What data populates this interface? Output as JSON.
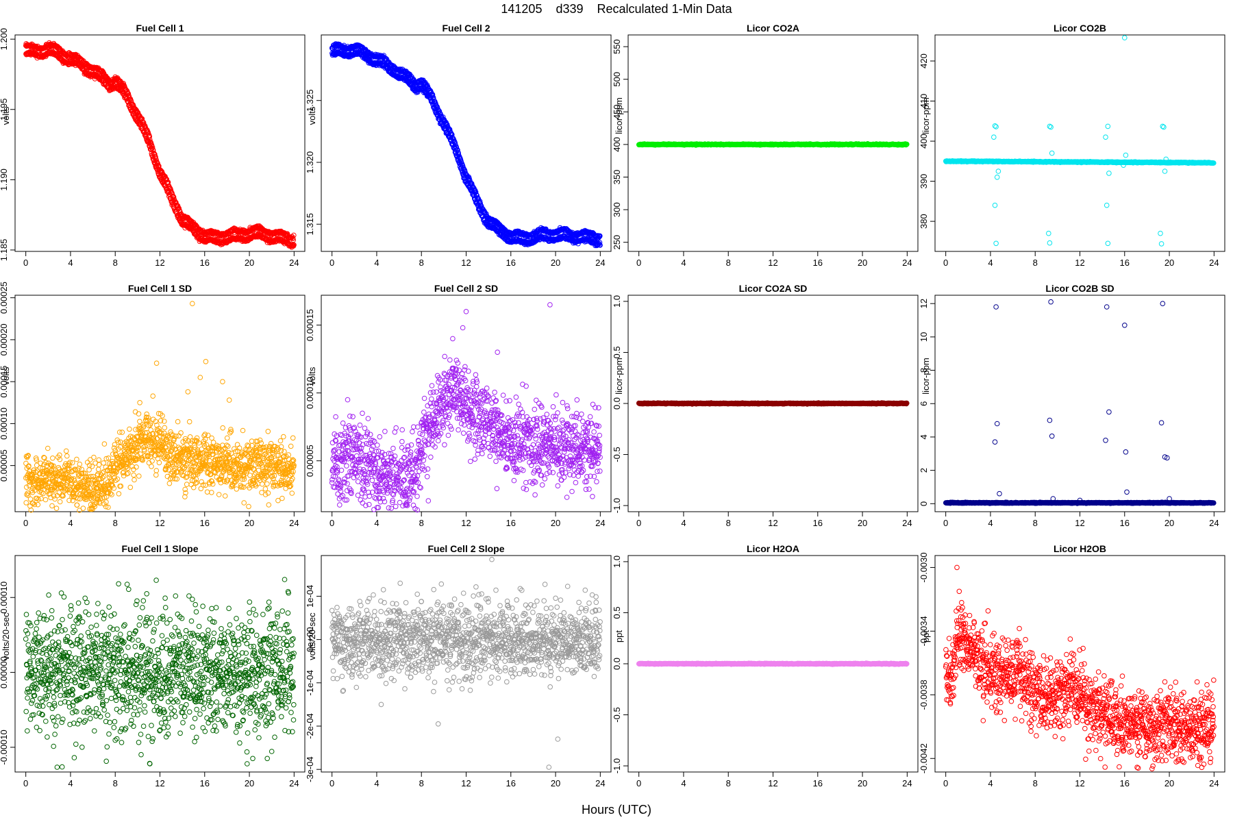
{
  "figure": {
    "title": "141205    d339    Recalculated 1-Min Data",
    "xlabel": "Hours (UTC)"
  },
  "chart_data": [
    {
      "type": "scatter",
      "title": "Fuel Cell 1",
      "ylabel": "volts",
      "xlim": [
        0,
        24
      ],
      "xticks": [
        0,
        4,
        8,
        12,
        16,
        20,
        24
      ],
      "ylim": [
        1.1849,
        1.2003
      ],
      "yticks": [
        1.185,
        1.19,
        1.195,
        1.2
      ],
      "ytick_labels": [
        "1.185",
        "1.190",
        "1.195",
        "1.200"
      ],
      "color": "#ff0000",
      "series": [
        {
          "x": [
            0,
            1,
            2,
            3,
            4,
            5,
            6,
            7,
            7.5,
            8,
            9,
            10,
            11,
            12,
            13,
            14,
            15,
            16,
            17,
            18,
            19,
            20,
            21,
            22,
            23,
            24
          ],
          "y": [
            1.1992,
            1.1991,
            1.1993,
            1.199,
            1.1986,
            1.1982,
            1.1977,
            1.1972,
            1.1968,
            1.197,
            1.196,
            1.1945,
            1.1928,
            1.1905,
            1.1888,
            1.1872,
            1.1865,
            1.186,
            1.1858,
            1.186,
            1.186,
            1.1862,
            1.1862,
            1.186,
            1.1858,
            1.1857
          ]
        }
      ],
      "band": 0.00055,
      "density": "dense"
    },
    {
      "type": "scatter",
      "title": "Fuel Cell 2",
      "ylabel": "volts",
      "xlim": [
        0,
        24
      ],
      "xticks": [
        0,
        4,
        8,
        12,
        16,
        20,
        24
      ],
      "ylim": [
        1.3128,
        1.3303
      ],
      "yticks": [
        1.315,
        1.32,
        1.325
      ],
      "ytick_labels": [
        "1.315",
        "1.320",
        "1.325"
      ],
      "color": "#0000ff",
      "series": [
        {
          "x": [
            0,
            1,
            2,
            3,
            4,
            5,
            6,
            7,
            7.5,
            8,
            9,
            10,
            11,
            12,
            13,
            14,
            15,
            16,
            17,
            18,
            19,
            20,
            21,
            22,
            23,
            24
          ],
          "y": [
            1.329,
            1.329,
            1.3291,
            1.3287,
            1.3283,
            1.3278,
            1.3272,
            1.3266,
            1.3262,
            1.3264,
            1.325,
            1.3232,
            1.3212,
            1.3188,
            1.3168,
            1.3152,
            1.3145,
            1.314,
            1.3138,
            1.314,
            1.3141,
            1.3142,
            1.3141,
            1.314,
            1.3139,
            1.3138
          ]
        }
      ],
      "band": 0.0006,
      "density": "dense"
    },
    {
      "type": "scatter",
      "title": "Licor CO2A",
      "ylabel": "licor-ppm",
      "xlim": [
        0,
        24
      ],
      "xticks": [
        0,
        4,
        8,
        12,
        16,
        20,
        24
      ],
      "ylim": [
        236,
        568
      ],
      "yticks": [
        250,
        300,
        350,
        400,
        450,
        500,
        550
      ],
      "ytick_labels": [
        "250",
        "300",
        "350",
        "400",
        "450",
        "500",
        "550"
      ],
      "color": "#00ee00",
      "series": [
        {
          "x": [
            0,
            24
          ],
          "y": [
            400,
            400
          ]
        }
      ],
      "density": "flat"
    },
    {
      "type": "scatter",
      "title": "Licor CO2B",
      "ylabel": "licor-ppm",
      "xlim": [
        0,
        24
      ],
      "xticks": [
        0,
        4,
        8,
        12,
        16,
        20,
        24
      ],
      "ylim": [
        372.5,
        426.5
      ],
      "yticks": [
        380,
        390,
        400,
        410,
        420
      ],
      "ytick_labels": [
        "380",
        "390",
        "400",
        "410",
        "420"
      ],
      "color": "#00e5ee",
      "series": [
        {
          "x": [
            0,
            24
          ],
          "y": [
            395,
            394.6
          ]
        }
      ],
      "outliers": [
        [
          4.4,
          403.8
        ],
        [
          4.5,
          403.6
        ],
        [
          4.3,
          401
        ],
        [
          4.4,
          384
        ],
        [
          4.5,
          374.5
        ],
        [
          4.6,
          391
        ],
        [
          4.7,
          392.5
        ],
        [
          9.3,
          403.7
        ],
        [
          9.4,
          403.5
        ],
        [
          9.2,
          377
        ],
        [
          9.3,
          374.6
        ],
        [
          9.5,
          397
        ],
        [
          14.5,
          403.7
        ],
        [
          14.3,
          401
        ],
        [
          14.4,
          384
        ],
        [
          14.5,
          374.5
        ],
        [
          14.6,
          392
        ],
        [
          16,
          425.8
        ],
        [
          16.1,
          396.5
        ],
        [
          15.9,
          394
        ],
        [
          19.4,
          403.7
        ],
        [
          19.5,
          403.5
        ],
        [
          19.2,
          377
        ],
        [
          19.3,
          374.4
        ],
        [
          19.6,
          392.5
        ],
        [
          19.7,
          395.5
        ]
      ],
      "density": "flat"
    },
    {
      "type": "scatter",
      "title": "Fuel Cell 1 SD",
      "ylabel": "volts",
      "xlim": [
        0,
        24
      ],
      "xticks": [
        0,
        4,
        8,
        12,
        16,
        20,
        24
      ],
      "ylim": [
        -5e-06,
        0.000253
      ],
      "yticks": [
        5e-05,
        0.0001,
        0.00015,
        0.0002,
        0.00025
      ],
      "ytick_labels": [
        "0.00005",
        "0.00010",
        "0.00015",
        "0.00020",
        "0.00025"
      ],
      "color": "#ffa500",
      "series": [
        {
          "x": [
            0,
            2,
            4,
            6,
            7.5,
            8,
            9,
            10,
            11,
            12,
            13,
            14,
            16,
            18,
            20,
            22,
            24
          ],
          "y": [
            3.5e-05,
            3.3e-05,
            3e-05,
            2.2e-05,
            3e-05,
            4.8e-05,
            6.5e-05,
            7.5e-05,
            8.5e-05,
            7.5e-05,
            6e-05,
            5.8e-05,
            5.5e-05,
            5.2e-05,
            5e-05,
            4.8e-05,
            4.5e-05
          ]
        }
      ],
      "spread": 1.6e-05,
      "outliers": [
        [
          14.9,
          0.000243
        ],
        [
          11.7,
          0.000172
        ],
        [
          16.1,
          0.000174
        ],
        [
          17.6,
          0.00015
        ],
        [
          14.5,
          0.000138
        ],
        [
          15.6,
          0.000155
        ],
        [
          18.2,
          0.000128
        ],
        [
          10.2,
          0.000125
        ]
      ],
      "density": "scatter"
    },
    {
      "type": "scatter",
      "title": "Fuel Cell 2 SD",
      "ylabel": "volts",
      "xlim": [
        0,
        24
      ],
      "xticks": [
        0,
        4,
        8,
        12,
        16,
        20,
        24
      ],
      "ylim": [
        1.25e-05,
        0.000172
      ],
      "yticks": [
        5e-05,
        0.0001,
        0.00015
      ],
      "ytick_labels": [
        "0.00005",
        "0.00010",
        "0.00015"
      ],
      "color": "#a020f0",
      "series": [
        {
          "x": [
            0,
            2,
            4,
            6,
            7.5,
            8,
            9,
            10,
            11,
            12,
            13,
            14,
            16,
            18,
            20,
            22,
            24
          ],
          "y": [
            5e-05,
            5.2e-05,
            3.8e-05,
            3.3e-05,
            4.5e-05,
            5.8e-05,
            8.2e-05,
            9.5e-05,
            0.0001,
            9.2e-05,
            8.2e-05,
            7.5e-05,
            6.5e-05,
            6.2e-05,
            6e-05,
            5.8e-05,
            5.8e-05
          ]
        }
      ],
      "spread": 1.4e-05,
      "outliers": [
        [
          19.5,
          0.000165
        ],
        [
          12,
          0.00016
        ],
        [
          11.7,
          0.000148
        ],
        [
          10.8,
          0.00014
        ],
        [
          14.8,
          0.00013
        ],
        [
          1.4,
          9.5e-05
        ],
        [
          5.3,
          1.5e-05
        ]
      ],
      "density": "scatter"
    },
    {
      "type": "scatter",
      "title": "Licor CO2A SD",
      "ylabel": "licor-ppm",
      "xlim": [
        0,
        24
      ],
      "xticks": [
        0,
        4,
        8,
        12,
        16,
        20,
        24
      ],
      "ylim": [
        -1.06,
        1.06
      ],
      "yticks": [
        -1,
        -0.5,
        0,
        0.5,
        1
      ],
      "ytick_labels": [
        "-1.0",
        "-0.5",
        "0.0",
        "0.5",
        "1.0"
      ],
      "color": "#8b0000",
      "series": [
        {
          "x": [
            0,
            24
          ],
          "y": [
            0,
            0
          ]
        }
      ],
      "density": "flat"
    },
    {
      "type": "scatter",
      "title": "Licor CO2B SD",
      "ylabel": "licor-ppm",
      "xlim": [
        0,
        24
      ],
      "xticks": [
        0,
        4,
        8,
        12,
        16,
        20,
        24
      ],
      "ylim": [
        -0.48,
        12.5
      ],
      "yticks": [
        0,
        2,
        4,
        6,
        8,
        10,
        12
      ],
      "ytick_labels": [
        "0",
        "2",
        "4",
        "6",
        "8",
        "10",
        "12"
      ],
      "color": "#00008b",
      "series": [
        {
          "x": [
            0,
            24
          ],
          "y": [
            0.05,
            0.05
          ]
        }
      ],
      "outliers": [
        [
          4.5,
          11.8
        ],
        [
          4.6,
          4.8
        ],
        [
          4.4,
          3.7
        ],
        [
          4.8,
          0.6
        ],
        [
          9.4,
          12.1
        ],
        [
          9.3,
          5
        ],
        [
          9.5,
          4.05
        ],
        [
          9.6,
          0.3
        ],
        [
          14.4,
          11.8
        ],
        [
          14.6,
          5.5
        ],
        [
          14.3,
          3.8
        ],
        [
          16,
          10.7
        ],
        [
          16.1,
          3.1
        ],
        [
          16.2,
          0.7
        ],
        [
          19.4,
          12
        ],
        [
          19.3,
          4.85
        ],
        [
          19.6,
          2.8
        ],
        [
          19.8,
          2.75
        ],
        [
          20,
          0.3
        ],
        [
          12,
          0.2
        ]
      ],
      "density": "flat"
    },
    {
      "type": "scatter",
      "title": "Fuel Cell 1 Slope",
      "ylabel": "volts/20-sec",
      "xlim": [
        0,
        24
      ],
      "xticks": [
        0,
        4,
        8,
        12,
        16,
        20,
        24
      ],
      "ylim": [
        -0.000133,
        0.000156
      ],
      "yticks": [
        -0.0001,
        0,
        0.0001
      ],
      "ytick_labels": [
        "-0.00010",
        "0.00000",
        "0.00010"
      ],
      "color": "#006400",
      "series": [
        {
          "x": [
            0,
            24
          ],
          "y": [
            0,
            0
          ]
        }
      ],
      "spread": 4.2e-05,
      "outliers": [
        [
          14.9,
          0.000156
        ],
        [
          14.6,
          0.000102
        ],
        [
          11.1,
          -0.000122
        ],
        [
          19.8,
          -0.000122
        ],
        [
          20.3,
          -0.000115
        ],
        [
          21.6,
          -0.000115
        ],
        [
          23.5,
          0.000106
        ]
      ],
      "density": "scatter"
    },
    {
      "type": "scatter",
      "title": "Fuel Cell 2 Slope",
      "ylabel": "volts/20-sec",
      "xlim": [
        0,
        24
      ],
      "xticks": [
        0,
        4,
        8,
        12,
        16,
        20,
        24
      ],
      "ylim": [
        -0.000306,
        0.000194
      ],
      "yticks": [
        -0.0003,
        -0.0002,
        -0.0001,
        0,
        0.0001
      ],
      "ytick_labels": [
        "-3e-04",
        "-2e-04",
        "-1e-04",
        "0e+00",
        "1e-04"
      ],
      "color": "#999999",
      "series": [
        {
          "x": [
            0,
            24
          ],
          "y": [
            0,
            0
          ]
        }
      ],
      "spread": 4.2e-05,
      "outliers": [
        [
          14.3,
          0.000185
        ],
        [
          6.1,
          0.00013
        ],
        [
          4.6,
          0.000115
        ],
        [
          19.4,
          -0.000295
        ],
        [
          20.2,
          -0.00023
        ],
        [
          9.5,
          -0.000195
        ],
        [
          0.1,
          -9e-05
        ],
        [
          4.4,
          -0.00015
        ]
      ],
      "density": "scatter"
    },
    {
      "type": "scatter",
      "title": "Licor H2OA",
      "ylabel": "ppt",
      "xlim": [
        0,
        24
      ],
      "xticks": [
        0,
        4,
        8,
        12,
        16,
        20,
        24
      ],
      "ylim": [
        -1.06,
        1.06
      ],
      "yticks": [
        -1,
        -0.5,
        0,
        0.5,
        1
      ],
      "ytick_labels": [
        "-1.0",
        "-0.5",
        "0.0",
        "0.5",
        "1.0"
      ],
      "color": "#ee82ee",
      "series": [
        {
          "x": [
            0,
            24
          ],
          "y": [
            0,
            0
          ]
        }
      ],
      "density": "flat"
    },
    {
      "type": "scatter",
      "title": "Licor H2OB",
      "ylabel": "ppt",
      "xlim": [
        0,
        24
      ],
      "xticks": [
        0,
        4,
        8,
        12,
        16,
        20,
        24
      ],
      "ylim": [
        -0.004285,
        -0.002925
      ],
      "yticks": [
        -0.0042,
        -0.0038,
        -0.0034,
        -0.003
      ],
      "ytick_labels": [
        "-0.0042",
        "-0.0038",
        "-0.0034",
        "-0.0030"
      ],
      "color": "#ff0000",
      "series": [
        {
          "x": [
            0,
            0.5,
            1,
            1.5,
            2,
            3,
            4,
            5,
            6,
            7,
            8,
            9,
            10,
            11,
            12,
            13,
            14,
            15,
            16,
            17,
            18,
            19,
            20,
            21,
            22,
            23,
            24
          ],
          "y": [
            -0.0036,
            -0.0037,
            -0.00345,
            -0.00342,
            -0.0035,
            -0.0036,
            -0.00365,
            -0.0037,
            -0.00365,
            -0.0037,
            -0.0038,
            -0.0038,
            -0.0038,
            -0.00375,
            -0.0038,
            -0.0039,
            -0.0039,
            -0.00395,
            -0.004,
            -0.004,
            -0.004,
            -0.004,
            -0.004,
            -0.004,
            -0.004,
            -0.004,
            -0.00395
          ]
        }
      ],
      "spread": 0.00011,
      "outliers": [
        [
          1,
          -0.003
        ],
        [
          1.2,
          -0.00315
        ],
        [
          23.7,
          -0.0042
        ],
        [
          22.7,
          -0.0042
        ]
      ],
      "density": "scatter"
    }
  ]
}
